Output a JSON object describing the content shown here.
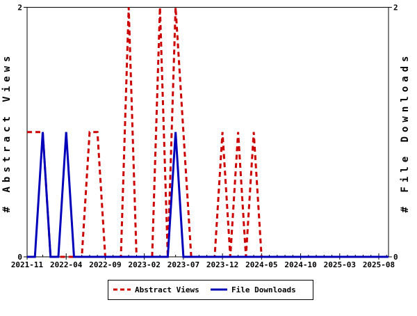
{
  "chart_data": {
    "type": "line",
    "title": "",
    "x": [
      "2021-11",
      "2021-12",
      "2022-01",
      "2022-02",
      "2022-03",
      "2022-04",
      "2022-05",
      "2022-06",
      "2022-07",
      "2022-08",
      "2022-09",
      "2022-10",
      "2022-11",
      "2022-12",
      "2023-01",
      "2023-02",
      "2023-03",
      "2023-04",
      "2023-05",
      "2023-06",
      "2023-07",
      "2023-08",
      "2023-09",
      "2023-10",
      "2023-11",
      "2023-12",
      "2024-01",
      "2024-02",
      "2024-03",
      "2024-04",
      "2024-05",
      "2024-06",
      "2024-07",
      "2024-08",
      "2024-09",
      "2024-10",
      "2024-11",
      "2024-12",
      "2025-01",
      "2025-02",
      "2025-03",
      "2025-04",
      "2025-05",
      "2025-06",
      "2025-07",
      "2025-08"
    ],
    "series": [
      {
        "name": "Abstract Views",
        "color": "#cc0000",
        "style": "dashed",
        "axis": "left",
        "values": [
          1,
          1,
          1,
          0,
          0,
          0,
          0,
          0,
          1,
          1,
          0,
          0,
          0,
          2,
          0,
          0,
          0,
          2,
          0,
          2,
          1,
          0,
          0,
          0,
          0,
          1,
          0,
          1,
          0,
          1,
          0,
          0,
          0,
          0,
          0,
          0,
          0,
          0,
          0,
          0,
          0,
          0,
          0,
          0,
          0,
          0
        ]
      },
      {
        "name": "File Downloads",
        "color": "#0000bb",
        "style": "solid",
        "axis": "right",
        "values": [
          0,
          0,
          1,
          0,
          0,
          1,
          0,
          0,
          0,
          0,
          0,
          0,
          0,
          0,
          0,
          0,
          0,
          0,
          0,
          1,
          0,
          0,
          0,
          0,
          0,
          0,
          0,
          0,
          0,
          0,
          0,
          0,
          0,
          0,
          0,
          0,
          0,
          0,
          0,
          0,
          0,
          0,
          0,
          0,
          0,
          0
        ]
      }
    ],
    "ylim": [
      0,
      2
    ],
    "yticks": [
      "0",
      "2"
    ],
    "xticks": [
      "2021-11",
      "2022-04",
      "2022-09",
      "2023-02",
      "2023-07",
      "2023-12",
      "2024-05",
      "2024-10",
      "2025-03",
      "2025-08"
    ],
    "xtick_every": 5,
    "ylabel_left": "# Abstract Views",
    "ylabel_right": "# File Downloads",
    "grid": false,
    "legend_position": "bottom-center"
  }
}
